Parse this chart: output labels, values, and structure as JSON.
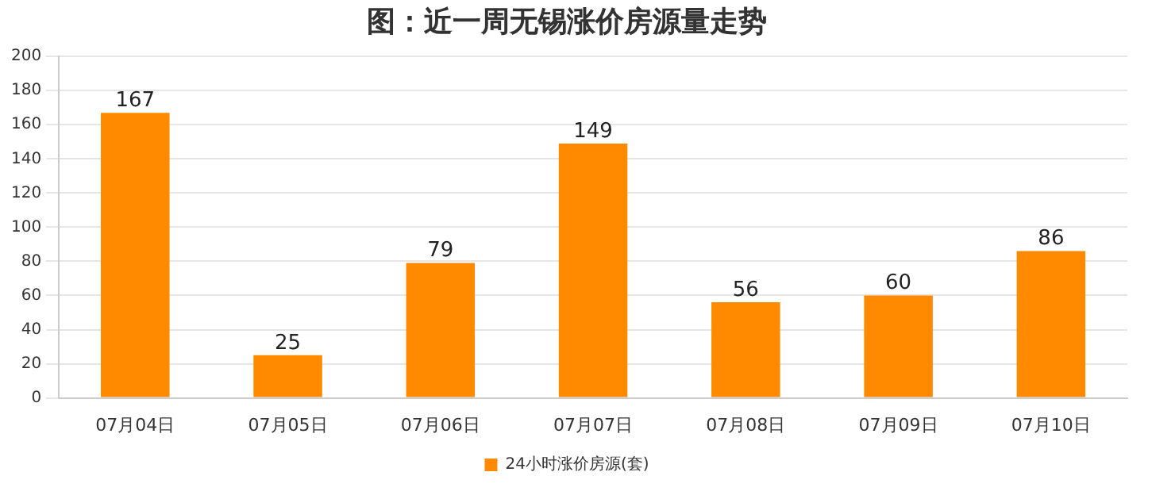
{
  "chart_data": {
    "type": "bar",
    "title": "图：近一周无锡涨价房源量走势",
    "categories": [
      "07月04日",
      "07月05日",
      "07月06日",
      "07月07日",
      "07月08日",
      "07月09日",
      "07月10日"
    ],
    "series": [
      {
        "name": "24小时涨价房源(套)",
        "color": "#ff8a00",
        "values": [
          167,
          25,
          79,
          149,
          56,
          60,
          86
        ]
      }
    ],
    "ylim": [
      0,
      200
    ],
    "yticks": [
      0,
      20,
      40,
      60,
      80,
      100,
      120,
      140,
      160,
      180,
      200
    ],
    "grid": "y",
    "legend": "bottom",
    "data_labels": true
  }
}
